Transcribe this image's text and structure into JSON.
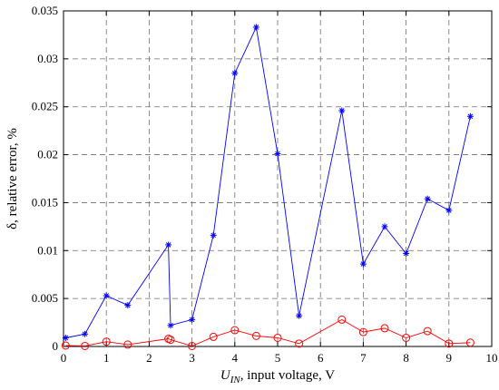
{
  "chart_data": {
    "type": "line",
    "xlabel_main": "U",
    "xlabel_sub": "IN",
    "xlabel_rest": ", input voltage, V",
    "ylabel": "δ, relative error, %",
    "xlim": [
      0,
      10
    ],
    "ylim": [
      0,
      0.035
    ],
    "grid": true,
    "x_ticks": [
      0,
      1,
      2,
      3,
      4,
      5,
      6,
      7,
      8,
      9,
      10
    ],
    "x_tick_labels": [
      "0",
      "1",
      "2",
      "3",
      "4",
      "5",
      "6",
      "7",
      "8",
      "9",
      "10"
    ],
    "y_ticks": [
      0,
      0.005,
      0.01,
      0.015,
      0.02,
      0.025,
      0.03,
      0.035
    ],
    "y_tick_labels": [
      "0",
      "0.005",
      "0.01",
      "0.015",
      "0.02",
      "0.025",
      "0.03",
      "0.035"
    ],
    "series": [
      {
        "color": "#0000ff",
        "marker": "asterisk",
        "x": [
          0.05,
          0.5,
          1.0,
          1.5,
          2.45,
          2.5,
          3.0,
          3.5,
          4.0,
          4.5,
          5.0,
          5.5,
          6.5,
          7.0,
          7.5,
          8.0,
          8.5,
          9.0,
          9.5
        ],
        "y": [
          0.0009,
          0.0013,
          0.0053,
          0.0043,
          0.0106,
          0.0022,
          0.0028,
          0.0116,
          0.0285,
          0.0333,
          0.0201,
          0.0032,
          0.0246,
          0.0086,
          0.0125,
          0.0097,
          0.0154,
          0.0142,
          0.024
        ]
      },
      {
        "color": "#ff0000",
        "marker": "circle",
        "x": [
          0.05,
          0.5,
          1.0,
          1.5,
          2.45,
          2.5,
          3.0,
          3.5,
          4.0,
          4.5,
          5.0,
          5.5,
          6.5,
          7.0,
          7.5,
          8.0,
          8.5,
          9.0,
          9.5
        ],
        "y": [
          0.0001,
          5e-05,
          0.0005,
          0.0002,
          0.0008,
          0.0007,
          5e-05,
          0.001,
          0.0017,
          0.0011,
          0.0009,
          0.0003,
          0.0028,
          0.0015,
          0.0019,
          0.0009,
          0.0016,
          0.0003,
          0.0004
        ]
      }
    ]
  }
}
